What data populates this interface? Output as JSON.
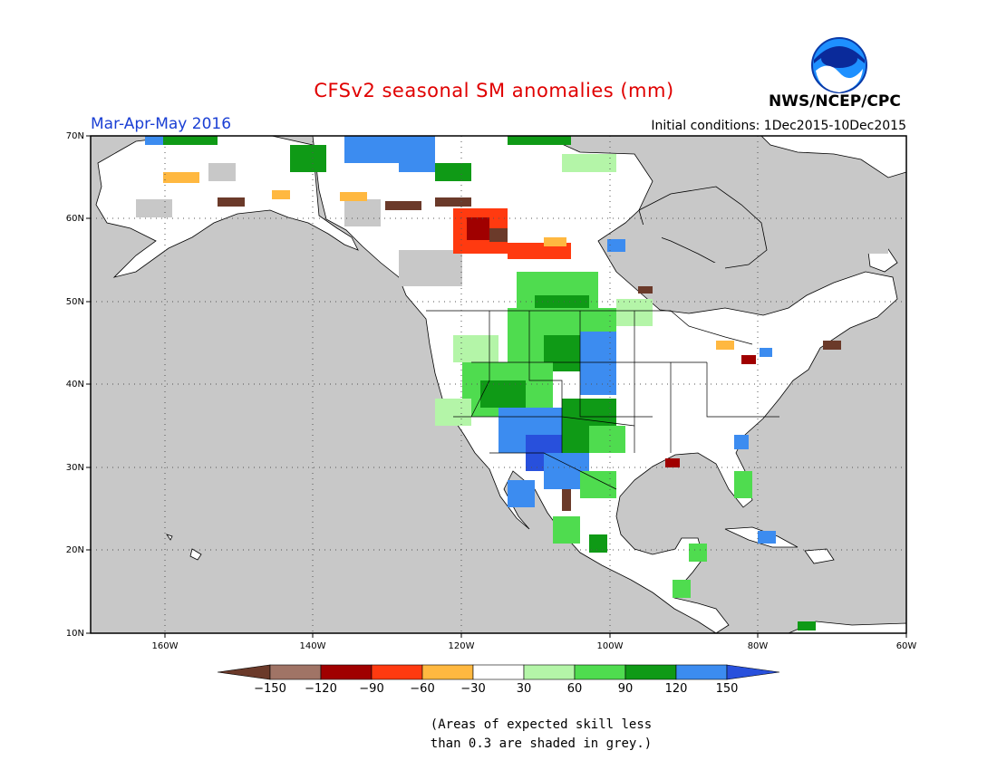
{
  "header": {
    "title": "CFSv2 seasonal SM anomalies (mm)",
    "period": "Mar-Apr-May 2016",
    "initial_conditions": "Initial conditions: 1Dec2015-10Dec2015",
    "agency": "NWS/NCEP/CPC",
    "logo_text": "NOAA"
  },
  "map": {
    "lat_labels": [
      "70N",
      "60N",
      "50N",
      "40N",
      "30N",
      "20N",
      "10N"
    ],
    "lon_labels": [
      "160W",
      "140W",
      "120W",
      "100W",
      "80W",
      "60W"
    ],
    "extent": {
      "lon": [
        -170,
        -60
      ],
      "lat": [
        10,
        70
      ]
    },
    "gridlines": "dotted",
    "colors": {
      "ocean": "#c8c8c8",
      "low_skill": "#c8c8c8",
      "land_neutral": "#ffffff"
    }
  },
  "colorbar": {
    "tick_labels": [
      "-150",
      "-120",
      "-90",
      "-60",
      "-30",
      "30",
      "60",
      "90",
      "120",
      "150"
    ],
    "bins": [
      {
        "range": "< -150",
        "color": "#6b3a2a"
      },
      {
        "range": "-150 to -120",
        "color": "#a07466"
      },
      {
        "range": "-120 to -90",
        "color": "#a00000"
      },
      {
        "range": "-90 to -60",
        "color": "#ff3a10"
      },
      {
        "range": "-60 to -30",
        "color": "#ffb840"
      },
      {
        "range": "-30 to 30",
        "color": "#ffffff"
      },
      {
        "range": "30 to 60",
        "color": "#b4f5a8"
      },
      {
        "range": "60 to 90",
        "color": "#4fdc4f"
      },
      {
        "range": "90 to 120",
        "color": "#0f9a16"
      },
      {
        "range": "120 to 150",
        "color": "#3c8cf0"
      },
      {
        "range": "> 150",
        "color": "#2850dc"
      }
    ]
  },
  "footnote": {
    "line1": "(Areas of expected skill less",
    "line2": "than 0.3 are shaded in grey.)"
  }
}
